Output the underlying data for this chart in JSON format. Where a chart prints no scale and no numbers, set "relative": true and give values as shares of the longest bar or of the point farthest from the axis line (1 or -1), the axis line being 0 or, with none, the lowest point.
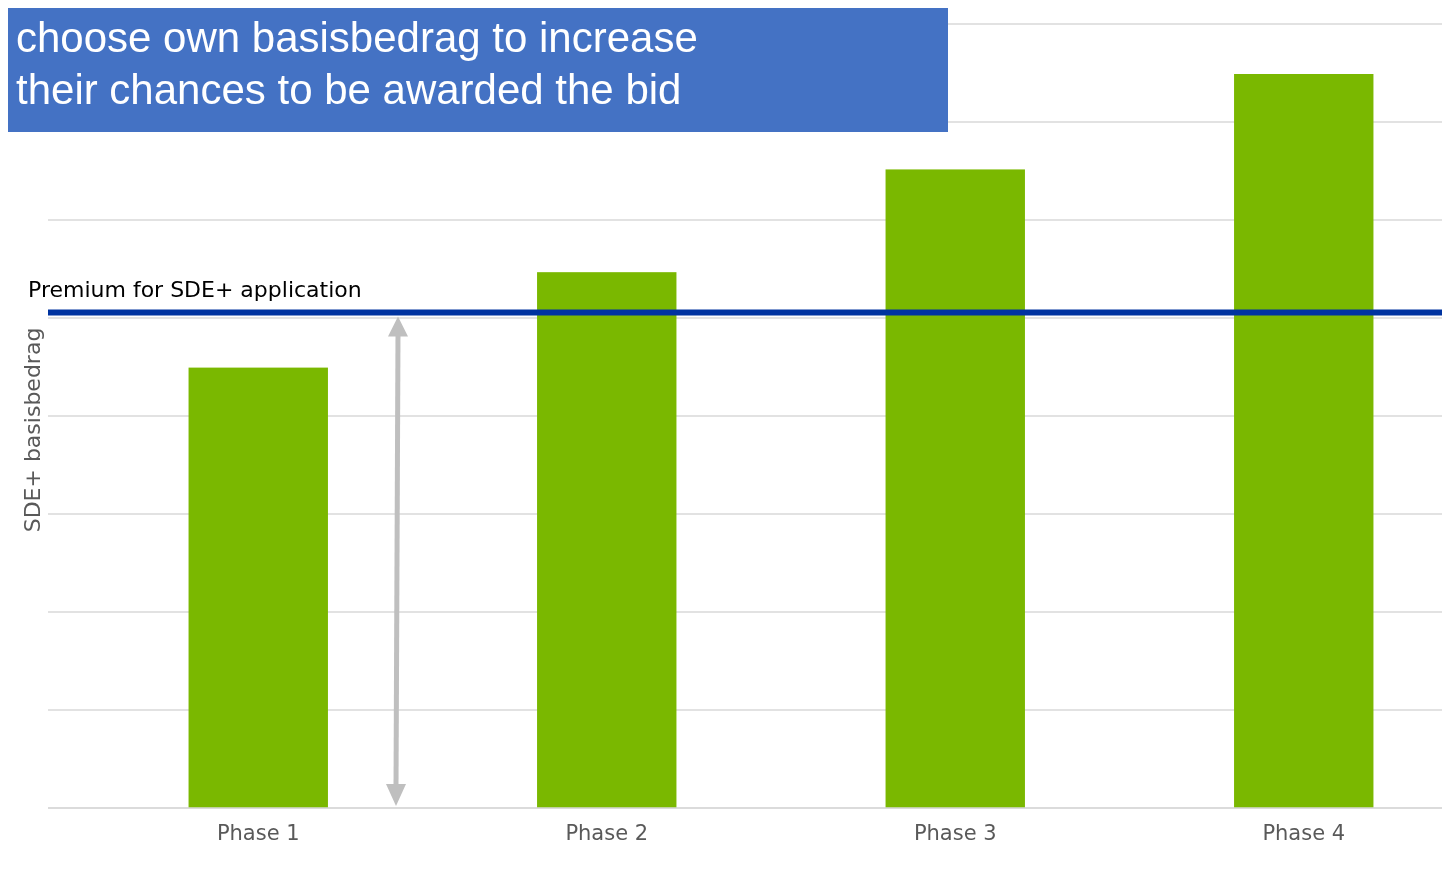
{
  "chart_data": {
    "type": "bar",
    "title": "choose own basisbedrag to increase their chances to be awarded the bid",
    "ylabel": "SDE+ basisbedrag",
    "categories": [
      "Phase 1",
      "Phase 2",
      "Phase 3",
      "Phase 4"
    ],
    "values": [
      0.6,
      0.73,
      0.87,
      1
    ],
    "color": "#7ab800",
    "relative": true,
    "grid": "y",
    "ref_lines": [
      {
        "axis": "y",
        "value": 0.675,
        "label": "Premium for SDE+ application",
        "color": "#0033a0"
      }
    ]
  }
}
